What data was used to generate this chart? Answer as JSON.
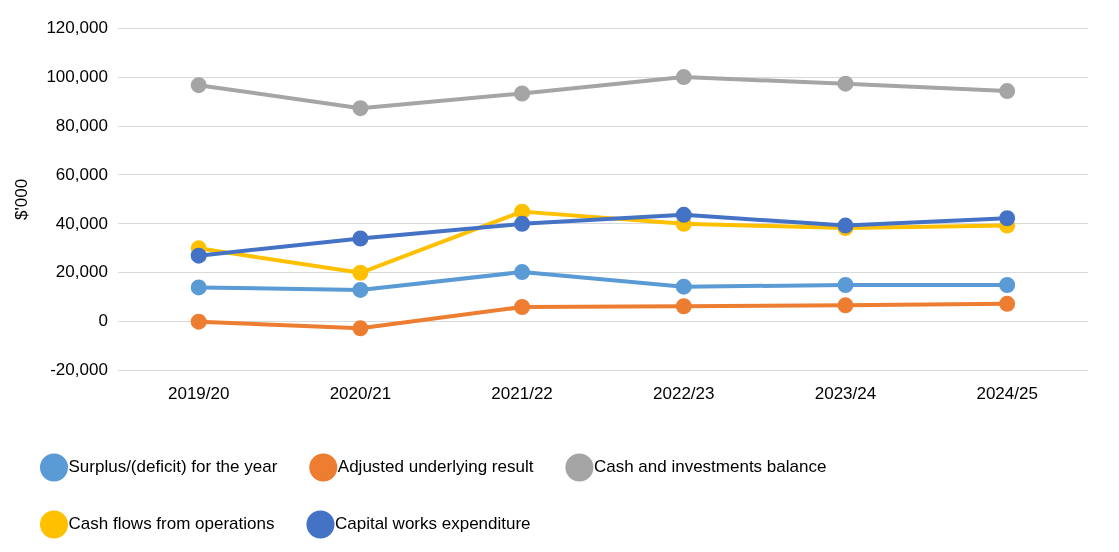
{
  "chart_data": {
    "type": "line",
    "ylabel": "$'000",
    "categories": [
      "2019/20",
      "2020/21",
      "2021/22",
      "2022/23",
      "2023/24",
      "2024/25"
    ],
    "series": [
      {
        "name": "Surplus/(deficit) for the year",
        "color": "#5b9bd5",
        "values": [
          14000,
          13000,
          20300,
          14300,
          15000,
          15000
        ]
      },
      {
        "name": "Adjusted underlying result",
        "color": "#ed7d31",
        "values": [
          0,
          -2700,
          6000,
          6300,
          6700,
          7300
        ]
      },
      {
        "name": "Cash and investments balance",
        "color": "#a5a5a5",
        "values": [
          96700,
          87300,
          93300,
          100000,
          97300,
          94300
        ]
      },
      {
        "name": "Cash flows from operations",
        "color": "#ffc000",
        "values": [
          30000,
          20000,
          45000,
          40000,
          38300,
          39300
        ]
      },
      {
        "name": "Capital works expenditure",
        "color": "#4472c4",
        "values": [
          27000,
          34000,
          40000,
          43700,
          39300,
          42300
        ]
      }
    ],
    "ylim": [
      -20000,
      120000
    ],
    "yticks": [
      {
        "value": -20000,
        "label": "-20,000"
      },
      {
        "value": 0,
        "label": "0"
      },
      {
        "value": 20000,
        "label": "20,000"
      },
      {
        "value": 40000,
        "label": "40,000"
      },
      {
        "value": 60000,
        "label": "60,000"
      },
      {
        "value": 80000,
        "label": "80,000"
      },
      {
        "value": 100000,
        "label": "100,000"
      },
      {
        "value": 120000,
        "label": "120,000"
      }
    ],
    "grid": "y",
    "legend": "bottom",
    "marker": "circle",
    "line_style": "solid"
  }
}
